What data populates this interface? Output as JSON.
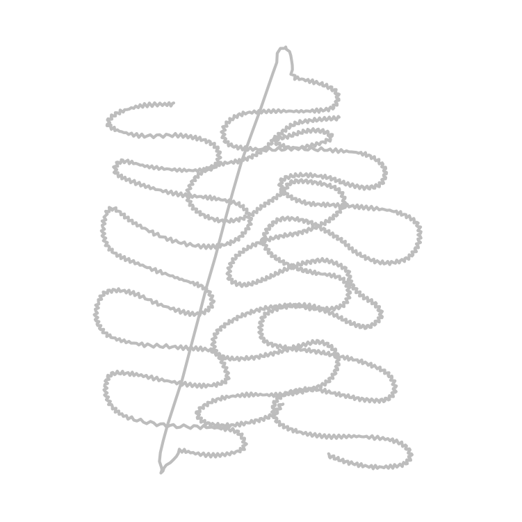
{
  "artwork": {
    "subject": "squiggle-drawing",
    "background_color": "#ffffff",
    "stroke_color": "#bdbdbd"
  }
}
